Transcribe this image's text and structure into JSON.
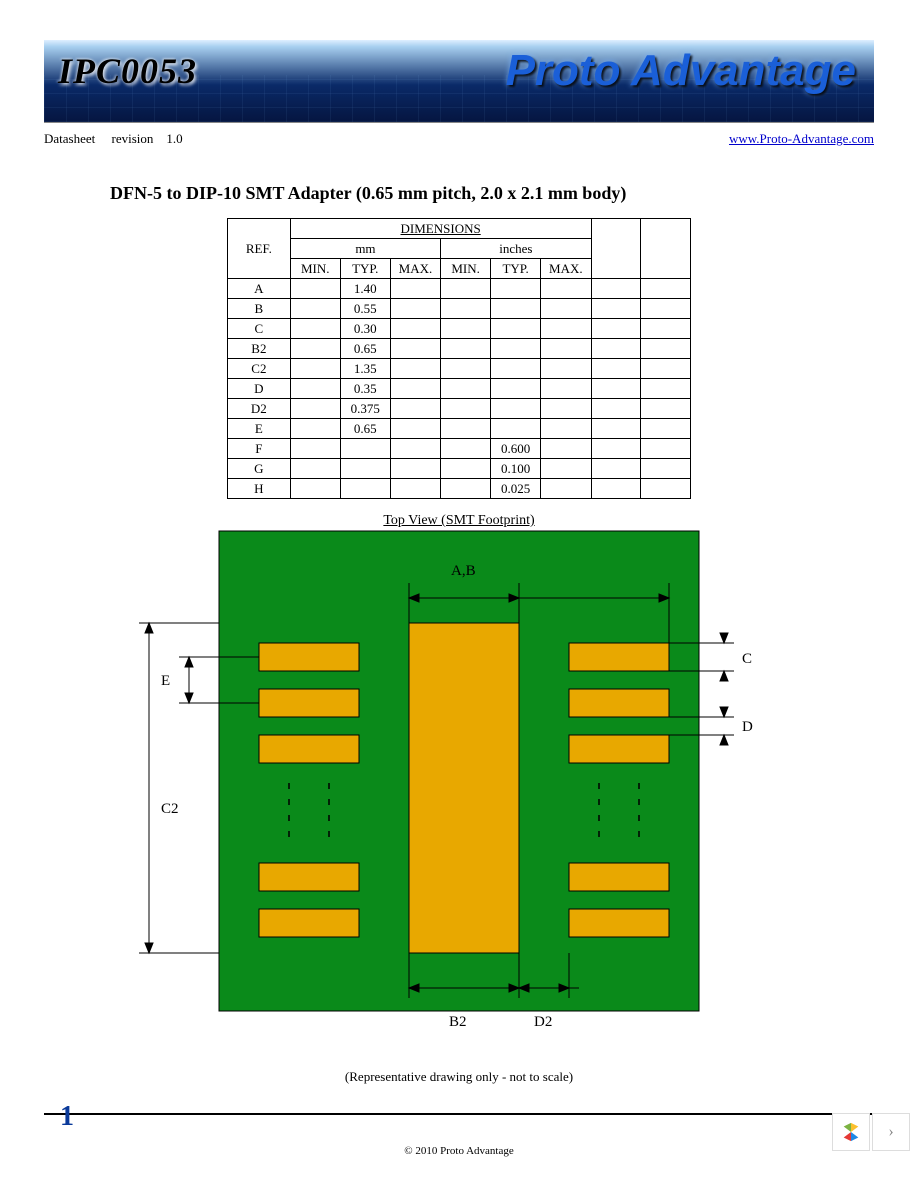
{
  "banner": {
    "part_number": "IPC0053",
    "brand": "Proto Advantage"
  },
  "meta": {
    "left_1": "Datasheet",
    "left_2": "revision",
    "left_3": "1.0",
    "link_text": "www.Proto-Advantage.com",
    "link_href": "http://www.Proto-Advantage.com"
  },
  "title": "DFN-5 to DIP-10 SMT Adapter (0.65 mm pitch, 2.0 x 2.1 mm body)",
  "table": {
    "header_dimensions": "DIMENSIONS",
    "header_mm": "mm",
    "header_inches": "inches",
    "header_ref": "REF.",
    "sub_min": "MIN.",
    "sub_typ": "TYP.",
    "sub_max": "MAX.",
    "rows": [
      {
        "ref": "A",
        "mm_typ": "1.40"
      },
      {
        "ref": "B",
        "mm_typ": "0.55"
      },
      {
        "ref": "C",
        "mm_typ": "0.30"
      },
      {
        "ref": "B2",
        "mm_typ": "0.65"
      },
      {
        "ref": "C2",
        "mm_typ": "1.35"
      },
      {
        "ref": "D",
        "mm_typ": "0.35"
      },
      {
        "ref": "D2",
        "mm_typ": "0.375"
      },
      {
        "ref": "E",
        "mm_typ": "0.65"
      },
      {
        "ref": "F",
        "in_typ": "0.600"
      },
      {
        "ref": "G",
        "in_typ": "0.100"
      },
      {
        "ref": "H",
        "in_typ": "0.025"
      }
    ]
  },
  "diagram": {
    "caption": "Top View (SMT Footprint)",
    "note": "(Representative drawing only - not to scale)",
    "colors": {
      "pcb": "#0a8a1a",
      "pad": "#e8a800",
      "line": "#000000"
    },
    "labels": {
      "A": "A",
      "B": "B",
      "C": "C",
      "D": "D",
      "E": "E",
      "C2": "C2",
      "B2": "B2",
      "D2": "D2"
    }
  },
  "footer": {
    "page_number": "1",
    "copyright": "© 2010 Proto Advantage"
  },
  "nav": {
    "next_glyph": "›"
  }
}
